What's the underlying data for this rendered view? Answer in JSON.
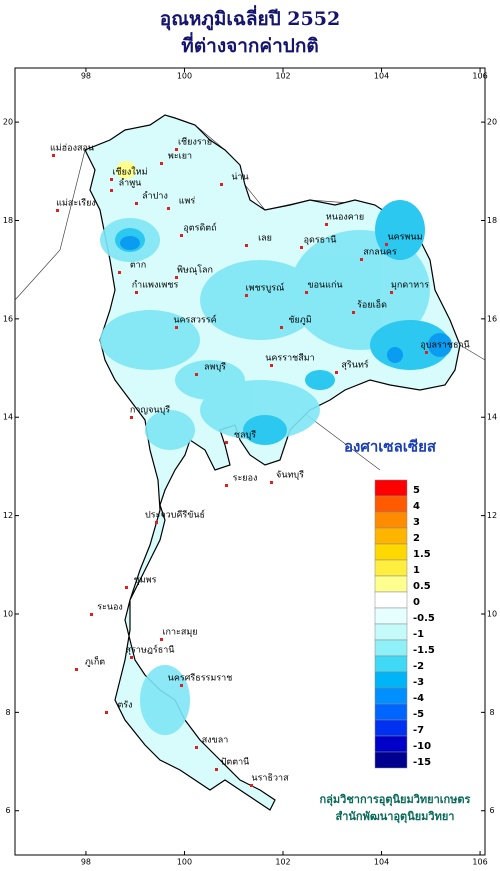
{
  "header": {
    "title": [
      "อุณหภูมิเฉลี่ยปี 2552",
      "ที่ต่างจากค่าปกติ"
    ]
  },
  "axes": {
    "lon_range": [
      96.56,
      106.1
    ],
    "lat_range": [
      21.1,
      5.1
    ],
    "lon_ticks": [
      98,
      100,
      102,
      104,
      106
    ],
    "lat_ticks": [
      20,
      18,
      16,
      14,
      12,
      10,
      8,
      6
    ]
  },
  "legend": {
    "unit": "องศาเซลเซียส",
    "levels": [
      5,
      4,
      3,
      2,
      1.5,
      1,
      0.5,
      0,
      -0.5,
      -1,
      -1.5,
      -2,
      -3,
      -4,
      -5,
      -7,
      -10,
      -15
    ],
    "colors": [
      "#ff0000",
      "#ff5a00",
      "#ff8c00",
      "#ffb400",
      "#ffd800",
      "#ffee40",
      "#ffff90",
      "#ffffff",
      "#e6ffff",
      "#c4fafa",
      "#8ff0f8",
      "#3fd8f5",
      "#00b4f8",
      "#0090ff",
      "#0064ff",
      "#0030f0",
      "#0000c8",
      "#000090"
    ]
  },
  "places": [
    "เชียงราย",
    "แม่ฮ่องสอน",
    "เชียงใหม่",
    "ลำพูน",
    "พะเยา",
    "น่าน",
    "ลำปาง",
    "แพร่",
    "แม่สะเรียง",
    "อุตรดิตถ์",
    "หนองคาย",
    "อุดรธานี",
    "เลย",
    "สกลนคร",
    "นครพนม",
    "มุกดาหาร",
    "ขอนแก่น",
    "ตาก",
    "พิษณุโลก",
    "กำแพงเพชร",
    "เพชรบูรณ์",
    "นครสวรรค์",
    "ชัยภูมิ",
    "ร้อยเอ็ด",
    "อุบลราชธานี",
    "นครราชสีมา",
    "สุรินทร์",
    "ลพบุรี",
    "กาญจนบุรี",
    "ชลบุรี",
    "ระยอง",
    "จันทบุรี",
    "ประจวบคีรีขันธ์",
    "ชุมพร",
    "ระนอง",
    "เกาะสมุย",
    "สุราษฎร์ธานี",
    "ภูเก็ต",
    "นครศรีธรรมราช",
    "ตรัง",
    "สงขลา",
    "ปัตตานี",
    "นราธิวาส"
  ],
  "credit": [
    "กลุ่มวิชาการอุตุนิยมวิทยาเกษตร",
    "สำนักพัฒนาอุตุนิยมวิทยา"
  ]
}
